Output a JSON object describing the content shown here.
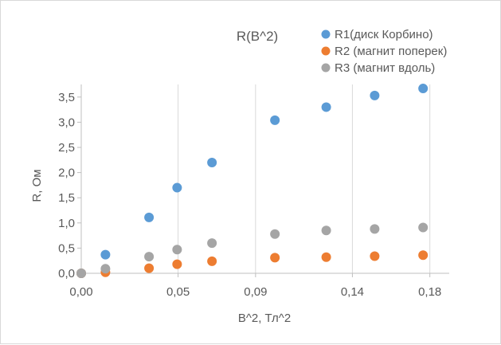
{
  "chart_data": {
    "type": "scatter",
    "title": "R(B^2)",
    "xlabel": "B^2, Тл^2",
    "ylabel": "R, Ом",
    "xlim": [
      0.0,
      0.19
    ],
    "ylim": [
      0.0,
      3.75
    ],
    "xticks": [
      0.0,
      0.05,
      0.09,
      0.14,
      0.18
    ],
    "xtick_labels": [
      "0,00",
      "0,05",
      "0,09",
      "0,14",
      "0,18"
    ],
    "yticks": [
      0.0,
      0.5,
      1.0,
      1.5,
      2.0,
      2.5,
      3.0,
      3.5
    ],
    "ytick_labels": [
      "0,0",
      "0,5",
      "1,0",
      "1,5",
      "2,0",
      "2,5",
      "3,0",
      "3,5"
    ],
    "grid": "vertical",
    "legend_position": "top-right",
    "series": [
      {
        "name": "R1(диск Корбино)",
        "color": "#5b9bd5",
        "x": [
          0.0,
          0.0125,
          0.035,
          0.0495,
          0.0675,
          0.1,
          0.1265,
          0.1515,
          0.1765
        ],
        "y": [
          0.0,
          0.37,
          1.11,
          1.7,
          2.2,
          3.04,
          3.3,
          3.53,
          3.67
        ]
      },
      {
        "name": "R2 (магнит поперек)",
        "color": "#ed7d31",
        "x": [
          0.0,
          0.0125,
          0.035,
          0.0495,
          0.0675,
          0.1,
          0.1265,
          0.1515,
          0.1765
        ],
        "y": [
          0.0,
          0.02,
          0.1,
          0.18,
          0.24,
          0.31,
          0.32,
          0.34,
          0.36
        ]
      },
      {
        "name": "R3 (магнит вдоль)",
        "color": "#a5a5a5",
        "x": [
          0.0,
          0.0125,
          0.035,
          0.0495,
          0.0675,
          0.1,
          0.1265,
          0.1515,
          0.1765
        ],
        "y": [
          0.0,
          0.09,
          0.33,
          0.47,
          0.6,
          0.78,
          0.85,
          0.88,
          0.91
        ]
      }
    ]
  }
}
